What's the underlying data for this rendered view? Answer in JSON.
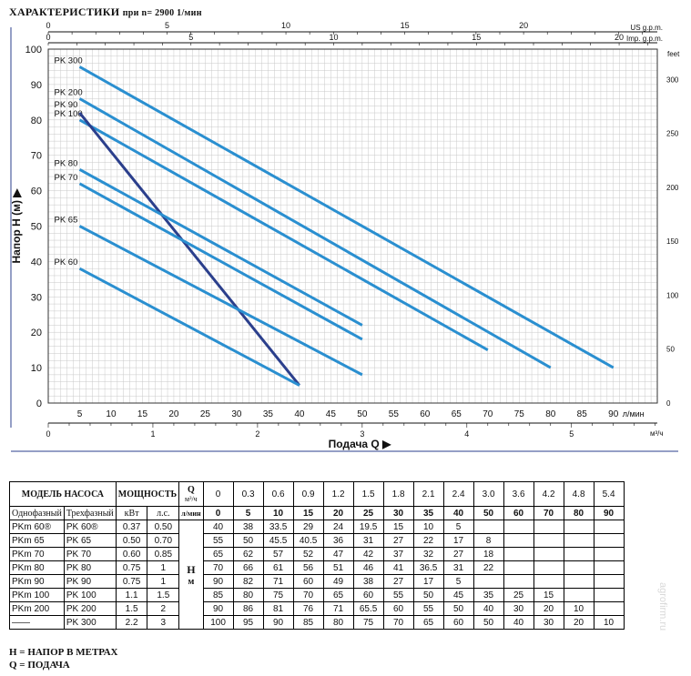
{
  "header": {
    "title": "ХАРАКТЕРИСТИКИ",
    "condition": "при n= 2900 1/мин"
  },
  "chart_data": {
    "type": "line",
    "x_label_q": "Подача Q",
    "x_unit_lmin": "л/мин",
    "x_unit_m3h": "м³/ч",
    "y_label": "Напор H (м)",
    "y_right_unit": "feet",
    "us_gpm_label": "US g.p.m.",
    "imp_gpm_label": "Imp. g.p.m.",
    "x_lmin_ticks": [
      5,
      10,
      15,
      20,
      25,
      30,
      35,
      40,
      45,
      50,
      55,
      60,
      65,
      70,
      75,
      80,
      85,
      90
    ],
    "y_ticks": [
      0,
      10,
      20,
      30,
      40,
      50,
      60,
      70,
      80,
      90,
      100
    ],
    "feet_ticks": [
      0,
      50,
      100,
      150,
      200,
      250,
      300
    ],
    "m3h_ticks": [
      0,
      1,
      2,
      3,
      4,
      5
    ],
    "us_gpm_ticks": [
      0,
      5,
      10,
      15,
      20
    ],
    "imp_gpm_ticks": [
      0,
      5,
      10,
      15,
      20
    ],
    "xlim": [
      0,
      97
    ],
    "ylim": [
      0,
      100
    ],
    "series": [
      {
        "name": "PK 300",
        "x": [
          5,
          90
        ],
        "y": [
          95,
          10
        ],
        "color": "#2a8fd0"
      },
      {
        "name": "PK 200",
        "x": [
          5,
          80
        ],
        "y": [
          86,
          10
        ],
        "color": "#2a8fd0"
      },
      {
        "name": "PK 100",
        "x": [
          5,
          70
        ],
        "y": [
          80,
          15
        ],
        "color": "#2a8fd0"
      },
      {
        "name": "PK 90",
        "x": [
          5,
          40
        ],
        "y": [
          82,
          5
        ],
        "color": "#2b3f8c"
      },
      {
        "name": "PK 80",
        "x": [
          5,
          50
        ],
        "y": [
          66,
          22
        ],
        "color": "#2a8fd0"
      },
      {
        "name": "PK 70",
        "x": [
          5,
          50
        ],
        "y": [
          62,
          18
        ],
        "color": "#2a8fd0"
      },
      {
        "name": "PK 65",
        "x": [
          5,
          50
        ],
        "y": [
          50,
          8
        ],
        "color": "#2a8fd0"
      },
      {
        "name": "PK 60",
        "x": [
          5,
          40
        ],
        "y": [
          38,
          5
        ],
        "color": "#2a8fd0"
      }
    ]
  },
  "table": {
    "h_model": "МОДЕЛЬ НАСОСА",
    "h_power": "МОЩНОСТЬ",
    "h_q": "Q",
    "h_m3h": "м³/ч",
    "h_lmin": "л/мин",
    "h_single": "Однофазный",
    "h_three": "Трехфазный",
    "h_kw": "кВт",
    "h_hp": "л.с.",
    "h_h": "H",
    "h_m": "м",
    "q_m3h": [
      "0",
      "0.3",
      "0.6",
      "0.9",
      "1.2",
      "1.5",
      "1.8",
      "2.1",
      "2.4",
      "3.0",
      "3.6",
      "4.2",
      "4.8",
      "5.4"
    ],
    "q_lmin": [
      "0",
      "5",
      "10",
      "15",
      "20",
      "25",
      "30",
      "35",
      "40",
      "50",
      "60",
      "70",
      "80",
      "90"
    ],
    "rows": [
      {
        "single": "PKm 60®",
        "three": "PK 60®",
        "kw": "0.37",
        "hp": "0.50",
        "h": [
          "40",
          "38",
          "33.5",
          "29",
          "24",
          "19.5",
          "15",
          "10",
          "5",
          "",
          "",
          "",
          "",
          ""
        ]
      },
      {
        "single": "PKm 65",
        "three": "PK 65",
        "kw": "0.50",
        "hp": "0.70",
        "h": [
          "55",
          "50",
          "45.5",
          "40.5",
          "36",
          "31",
          "27",
          "22",
          "17",
          "8",
          "",
          "",
          "",
          ""
        ]
      },
      {
        "single": "PKm 70",
        "three": "PK 70",
        "kw": "0.60",
        "hp": "0.85",
        "h": [
          "65",
          "62",
          "57",
          "52",
          "47",
          "42",
          "37",
          "32",
          "27",
          "18",
          "",
          "",
          "",
          ""
        ]
      },
      {
        "single": "PKm 80",
        "three": "PK 80",
        "kw": "0.75",
        "hp": "1",
        "h": [
          "70",
          "66",
          "61",
          "56",
          "51",
          "46",
          "41",
          "36.5",
          "31",
          "22",
          "",
          "",
          "",
          ""
        ]
      },
      {
        "single": "PKm 90",
        "three": "PK 90",
        "kw": "0.75",
        "hp": "1",
        "h": [
          "90",
          "82",
          "71",
          "60",
          "49",
          "38",
          "27",
          "17",
          "5",
          "",
          "",
          "",
          "",
          ""
        ]
      },
      {
        "single": "PKm 100",
        "three": "PK 100",
        "kw": "1.1",
        "hp": "1.5",
        "h": [
          "85",
          "80",
          "75",
          "70",
          "65",
          "60",
          "55",
          "50",
          "45",
          "35",
          "25",
          "15",
          "",
          ""
        ]
      },
      {
        "single": "PKm 200",
        "three": "PK 200",
        "kw": "1.5",
        "hp": "2",
        "h": [
          "90",
          "86",
          "81",
          "76",
          "71",
          "65.5",
          "60",
          "55",
          "50",
          "40",
          "30",
          "20",
          "10",
          ""
        ]
      },
      {
        "single": "——",
        "three": "PK 300",
        "kw": "2.2",
        "hp": "3",
        "h": [
          "100",
          "95",
          "90",
          "85",
          "80",
          "75",
          "70",
          "65",
          "60",
          "50",
          "40",
          "30",
          "20",
          "10"
        ]
      }
    ]
  },
  "legend": {
    "h": "H = НАПОР В МЕТРАХ",
    "q": "Q = ПОДАЧА"
  },
  "watermark": "agrofirm.ru"
}
